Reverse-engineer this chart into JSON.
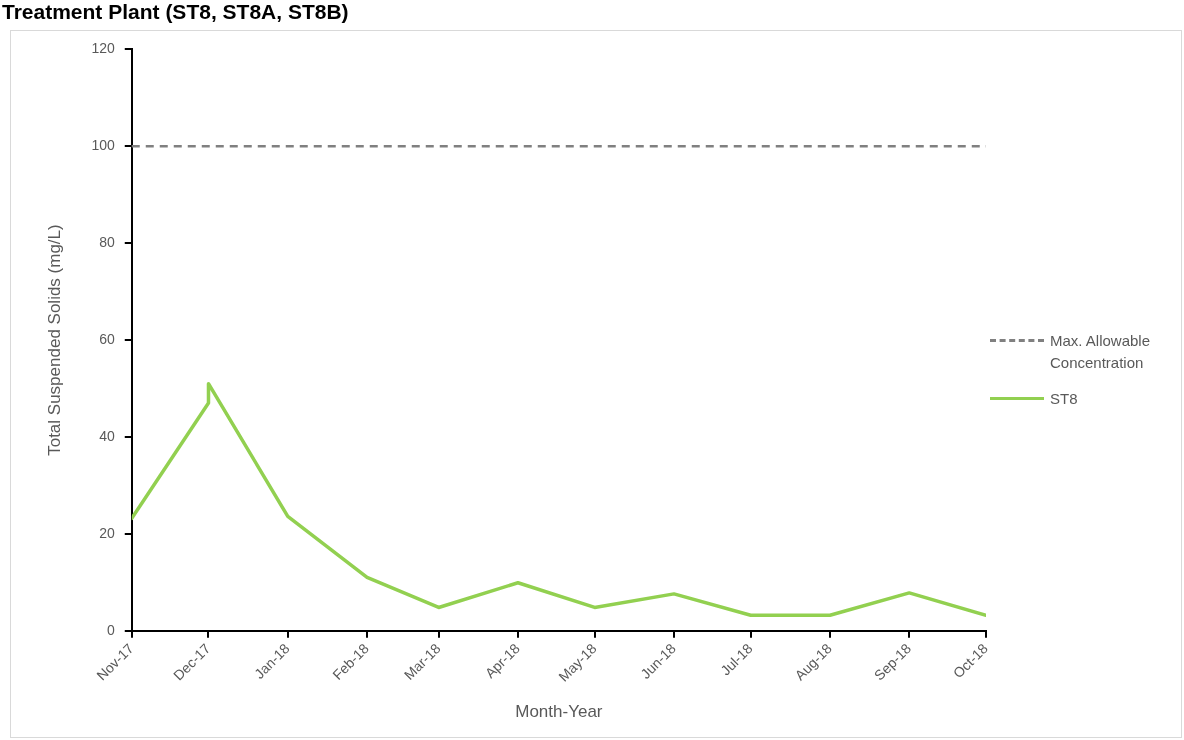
{
  "chart_data": {
    "type": "line",
    "title": "Treatment Plant (ST8, ST8A, ST8B)",
    "xlabel": "Month-Year",
    "ylabel": "Total Suspended Solids (mg/L)",
    "x": [
      "2017-11",
      "2017-12",
      "2017-12",
      "2018-01",
      "2018-02",
      "2018-03",
      "2018-04",
      "2018-05",
      "2018-06",
      "2018-07",
      "2018-08",
      "2018-09",
      "2018-10"
    ],
    "series": [
      {
        "name": "ST8",
        "color": "#92d050",
        "values": [
          23.2,
          47,
          51,
          23.6,
          11,
          4.8,
          9.9,
          4.8,
          7.6,
          3.2,
          3.2,
          7.8,
          3.2
        ]
      }
    ],
    "ref_lines": [
      {
        "axis": "y",
        "value": 100,
        "label": "Max. Allowable Concentration",
        "color": "#808080",
        "line_style": "dashed"
      }
    ],
    "xlim": [
      "2017-11",
      "2018-10"
    ],
    "xticks": [
      {
        "value": "2017-11",
        "label": "Nov-17"
      },
      {
        "value": "2017-12",
        "label": "Dec-17"
      },
      {
        "value": "2018-01",
        "label": "Jan-18"
      },
      {
        "value": "2018-02",
        "label": "Feb-18"
      },
      {
        "value": "2018-03",
        "label": "Mar-18"
      },
      {
        "value": "2018-04",
        "label": "Apr-18"
      },
      {
        "value": "2018-05",
        "label": "May-18"
      },
      {
        "value": "2018-06",
        "label": "Jun-18"
      },
      {
        "value": "2018-07",
        "label": "Jul-18"
      },
      {
        "value": "2018-08",
        "label": "Aug-18"
      },
      {
        "value": "2018-09",
        "label": "Sep-18"
      },
      {
        "value": "2018-10",
        "label": "Oct-18"
      }
    ],
    "ylim": [
      0,
      120
    ],
    "yticks": [
      0,
      20,
      40,
      60,
      80,
      100,
      120
    ],
    "grid": false,
    "legend": "right",
    "marker": "none",
    "line_style": "solid"
  }
}
